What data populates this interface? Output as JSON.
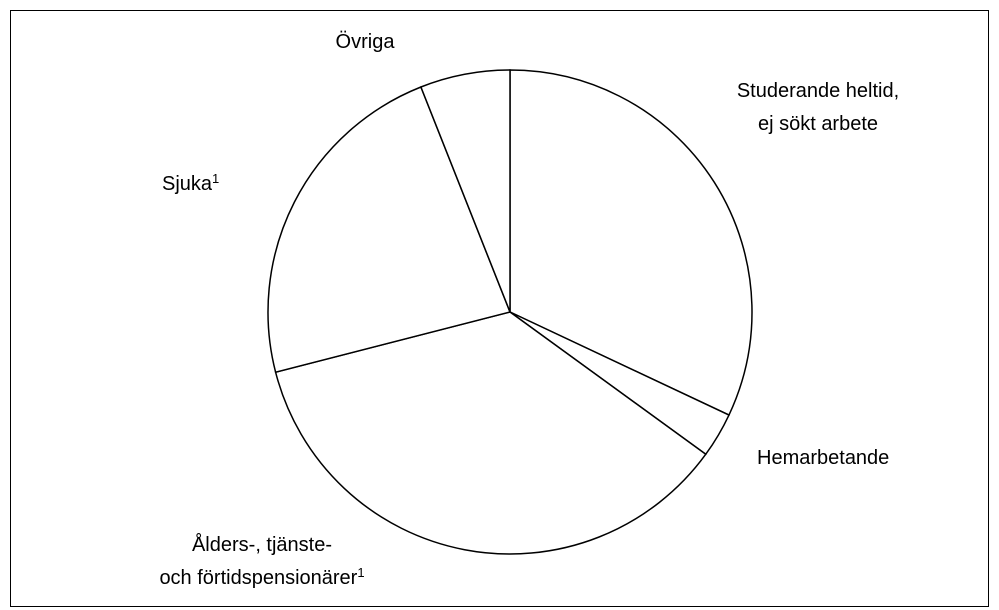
{
  "chart_data": {
    "type": "pie",
    "categories": [
      [
        "Studerande heltid,",
        "ej sökt arbete"
      ],
      [
        "Hemarbetande"
      ],
      [
        "Ålders-, tjänste-",
        "och förtidspensionärer"
      ],
      [
        "Sjuka"
      ],
      [
        "Övriga"
      ]
    ],
    "footnote_marks": [
      null,
      null,
      "1",
      "1",
      null
    ],
    "values": [
      32,
      3,
      36,
      23,
      6
    ],
    "color": "#ffffff"
  }
}
